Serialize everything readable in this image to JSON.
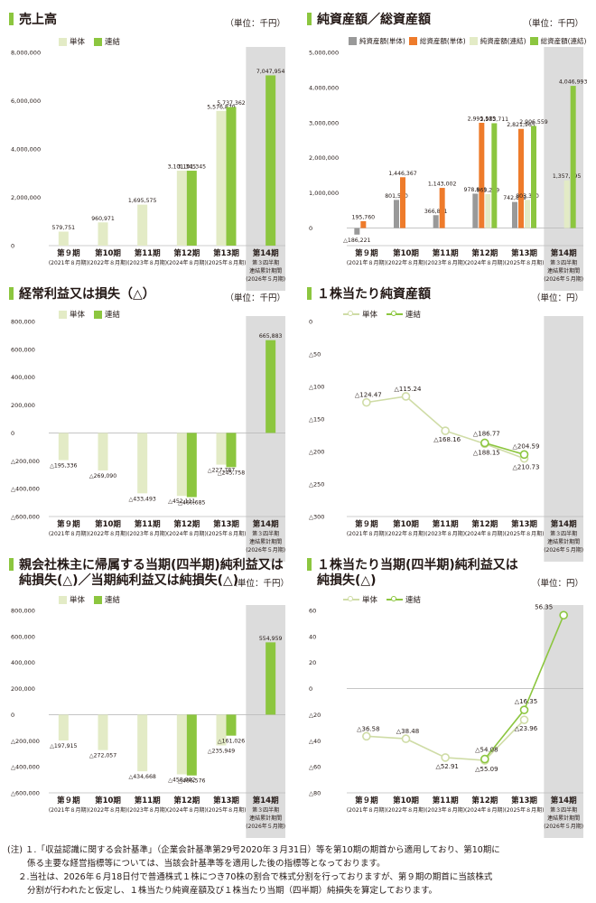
{
  "colors": {
    "tan": "#e3ebc6",
    "green": "#8cc63f",
    "gray": "#999999",
    "orange": "#ee7b2b",
    "shade": "#dcdcdc",
    "line_tan": "#cfdca6"
  },
  "categories": [
    [
      "第９期",
      "(2021年８月期)"
    ],
    [
      "第10期",
      "(2022年８月期)"
    ],
    [
      "第11期",
      "(2023年８月期)"
    ],
    [
      "第12期",
      "(2024年８月期)"
    ],
    [
      "第13期",
      "(2025年８月期)"
    ],
    [
      "第14期",
      "第３四半期",
      "連結累計期間",
      "(2026年５月期)"
    ]
  ],
  "charts": {
    "sales": {
      "title": "売上高",
      "title2": "",
      "unit": "（単位：千円）",
      "chart_data": {
        "type": "bar",
        "ylim": [
          0,
          8000000
        ],
        "ticks": [
          [
            "8,000,000",
            8000000
          ],
          [
            "6,000,000",
            6000000
          ],
          [
            "4,000,000",
            4000000
          ],
          [
            "2,000,000",
            2000000
          ],
          [
            "0",
            0
          ]
        ],
        "series": [
          {
            "name": "単体",
            "color": "tan",
            "values": [
              579751,
              960971,
              1695575,
              3101345,
              5576879,
              null
            ],
            "labels": [
              "579,751",
              "960,971",
              "1,695,575",
              "3,101,345",
              "5,576,879",
              ""
            ]
          },
          {
            "name": "連結",
            "color": "green",
            "values": [
              null,
              null,
              null,
              3101345,
              5737362,
              7047954
            ],
            "labels": [
              "",
              "",
              "",
              "3,101,345",
              "5,737,362",
              "7,047,954"
            ]
          }
        ]
      }
    },
    "netassets": {
      "title": "純資産額／総資産額",
      "title2": "",
      "unit": "（単位：千円）",
      "chart_data": {
        "type": "bar",
        "ylim": [
          -500000,
          5000000
        ],
        "ticks": [
          [
            "5,000,000",
            5000000
          ],
          [
            "4,000,000",
            4000000
          ],
          [
            "3,000,000",
            3000000
          ],
          [
            "2,000,000",
            2000000
          ],
          [
            "1,000,000",
            1000000
          ],
          [
            "0",
            0
          ]
        ],
        "series": [
          {
            "name": "純資産額(単体)",
            "color": "gray",
            "values": [
              -186221,
              801530,
              366861,
              978839,
              742889,
              null
            ],
            "labels": [
              "△186,221",
              "801,530",
              "366,861",
              "978,839",
              "742,889",
              ""
            ]
          },
          {
            "name": "総資産額(単体)",
            "color": "orange",
            "values": [
              195760,
              1446367,
              1143002,
              2995575,
              2821965,
              null
            ],
            "labels": [
              "195,760",
              "1,446,367",
              "1,143,002",
              "2,995,575",
              "2,821,965",
              ""
            ]
          },
          {
            "name": "純資産額(連結)",
            "color": "tan",
            "values": [
              null,
              null,
              null,
              965269,
              803380,
              1357295
            ],
            "labels": [
              "",
              "",
              "",
              "965,269",
              "803,380",
              "1,357,295"
            ]
          },
          {
            "name": "総資産額(連結)",
            "color": "green",
            "values": [
              null,
              null,
              null,
              2983711,
              2906559,
              4046993
            ],
            "labels": [
              "",
              "",
              "",
              "2,983,711",
              "2,906,559",
              "4,046,993"
            ]
          }
        ]
      }
    },
    "ordinary": {
      "title": "経常利益又は損失（△）",
      "title2": "",
      "unit": "（単位：千円）",
      "chart_data": {
        "type": "bar",
        "ylim": [
          -600000,
          800000
        ],
        "ticks": [
          [
            "800,000",
            800000
          ],
          [
            "600,000",
            600000
          ],
          [
            "400,000",
            400000
          ],
          [
            "200,000",
            200000
          ],
          [
            "0",
            0
          ],
          [
            "△200,000",
            -200000
          ],
          [
            "△400,000",
            -400000
          ],
          [
            "△600,000",
            -600000
          ]
        ],
        "series": [
          {
            "name": "単体",
            "color": "tan",
            "values": [
              -195336,
              -269090,
              -433493,
              -452111,
              -227787,
              null
            ],
            "labels": [
              "△195,336",
              "△269,090",
              "△433,493",
              "△452,111",
              "△227,787",
              ""
            ]
          },
          {
            "name": "連結",
            "color": "green",
            "values": [
              null,
              null,
              null,
              -460685,
              -245758,
              665883
            ],
            "labels": [
              "",
              "",
              "",
              "△460,685",
              "△245,758",
              "665,883"
            ]
          }
        ]
      }
    },
    "bps": {
      "title": "１株当たり純資産額",
      "title2": "",
      "unit": "（単位：円）",
      "chart_data": {
        "type": "line",
        "ylim": [
          -300,
          0
        ],
        "ticks": [
          [
            "0",
            0
          ],
          [
            "△50",
            -50
          ],
          [
            "△100",
            -100
          ],
          [
            "△150",
            -150
          ],
          [
            "△200",
            -200
          ],
          [
            "△250",
            -250
          ],
          [
            "△300",
            -300
          ]
        ],
        "series": [
          {
            "name": "単体",
            "color": "line_tan",
            "values": [
              -124.47,
              -115.24,
              -168.16,
              -188.15,
              -210.73,
              null
            ],
            "labels": [
              "△124.47",
              "△115.24",
              "△168.16",
              "△188.15",
              "△210.73",
              ""
            ]
          },
          {
            "name": "連結",
            "color": "green",
            "values": [
              null,
              null,
              null,
              -186.77,
              -204.59,
              null
            ],
            "labels": [
              "",
              "",
              "",
              "△186.77",
              "△204.59",
              ""
            ]
          }
        ]
      }
    },
    "netincome": {
      "title": "親会社株主に帰属する当期(四半期)純利益又は",
      "title2": "純損失(△)／当期純利益又は純損失(△)",
      "unit": "（単位：千円）",
      "chart_data": {
        "type": "bar",
        "ylim": [
          -600000,
          800000
        ],
        "ticks": [
          [
            "800,000",
            800000
          ],
          [
            "600,000",
            600000
          ],
          [
            "400,000",
            400000
          ],
          [
            "200,000",
            200000
          ],
          [
            "0",
            0
          ],
          [
            "△200,000",
            -200000
          ],
          [
            "△400,000",
            -400000
          ],
          [
            "△600,000",
            -600000
          ]
        ],
        "series": [
          {
            "name": "単体",
            "color": "tan",
            "values": [
              -197915,
              -272057,
              -434668,
              -458002,
              -235949,
              null
            ],
            "labels": [
              "△197,915",
              "△272,057",
              "△434,668",
              "△458,002",
              "△235,949",
              ""
            ]
          },
          {
            "name": "連結",
            "color": "green",
            "values": [
              null,
              null,
              null,
              -466576,
              -161026,
              554959
            ],
            "labels": [
              "",
              "",
              "",
              "△466,576",
              "△161,026",
              "554,959"
            ]
          }
        ]
      }
    },
    "eps": {
      "title": "１株当たり当期(四半期)純利益又は",
      "title2": "純損失(△)",
      "unit": "（単位：円）",
      "chart_data": {
        "type": "line",
        "ylim": [
          -80,
          60
        ],
        "ticks": [
          [
            "60",
            60
          ],
          [
            "40",
            40
          ],
          [
            "20",
            20
          ],
          [
            "0",
            0
          ],
          [
            "△20",
            -20
          ],
          [
            "△40",
            -40
          ],
          [
            "△60",
            -60
          ],
          [
            "△80",
            -80
          ]
        ],
        "series": [
          {
            "name": "単体",
            "color": "line_tan",
            "values": [
              -36.58,
              -38.48,
              -52.91,
              -55.09,
              -23.96,
              null
            ],
            "labels": [
              "△36.58",
              "△38.48",
              "△52.91",
              "△55.09",
              "△23.96",
              ""
            ]
          },
          {
            "name": "連結",
            "color": "green",
            "values": [
              null,
              null,
              null,
              -54.08,
              -16.35,
              56.35
            ],
            "labels": [
              "",
              "",
              "",
              "△54.08",
              "△16.35",
              "56.35"
            ]
          }
        ]
      }
    }
  },
  "notes": [
    "(注) １.「収益認識に関する会計基準」（企業会計基準第29号2020年３月31日）等を第10期の期首から適用しており、第10期に",
    "係る主要な経営指標等については、当該会計基準等を適用した後の指標等となっております。",
    "２.当社は、2026年６月18日付で普通株式１株につき70株の割合で株式分割を行っておりますが、第９期の期首に当該株式",
    "分割が行われたと仮定し、１株当たり純資産額及び１株当たり当期（四半期）純損失を算定しております。"
  ]
}
